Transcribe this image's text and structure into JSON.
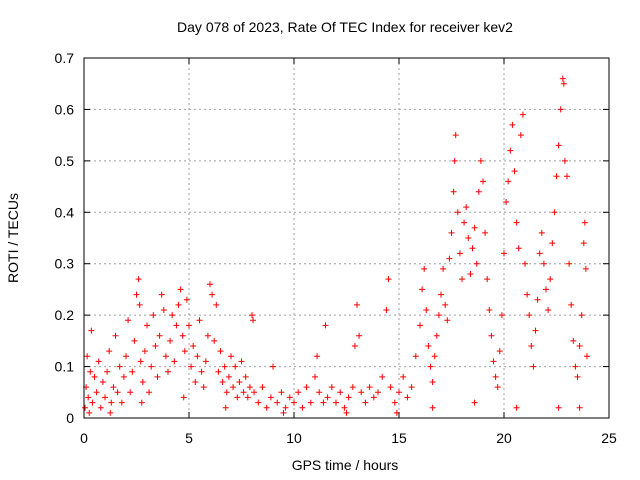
{
  "chart_data": {
    "type": "scatter",
    "title": "Day 078 of 2023, Rate Of TEC Index for receiver kev2",
    "xlabel": "GPS time / hours",
    "ylabel": "ROTI / TECUs",
    "xlim": [
      0,
      25
    ],
    "ylim": [
      0,
      0.7
    ],
    "x_ticks": [
      0,
      5,
      10,
      15,
      20,
      25
    ],
    "y_ticks": [
      0,
      0.1,
      0.2,
      0.3,
      0.4,
      0.5,
      0.6,
      0.7
    ],
    "x_tick_labels": [
      "0",
      "5",
      "10",
      "15",
      "20",
      "25"
    ],
    "y_tick_labels": [
      "0",
      "0.1",
      "0.2",
      "0.3",
      "0.4",
      "0.5",
      "0.6",
      "0.7"
    ],
    "grid": true,
    "marker": "plus",
    "marker_color": "#ff0000",
    "series": [
      {
        "points": [
          [
            0.05,
            0.02
          ],
          [
            0.1,
            0.06
          ],
          [
            0.15,
            0.12
          ],
          [
            0.2,
            0.04
          ],
          [
            0.3,
            0.09
          ],
          [
            0.35,
            0.17
          ],
          [
            0.4,
            0.03
          ],
          [
            0.5,
            0.08
          ],
          [
            0.6,
            0.05
          ],
          [
            0.7,
            0.11
          ],
          [
            0.8,
            0.02
          ],
          [
            0.9,
            0.07
          ],
          [
            1.0,
            0.04
          ],
          [
            1.1,
            0.09
          ],
          [
            1.2,
            0.13
          ],
          [
            1.3,
            0.03
          ],
          [
            1.4,
            0.06
          ],
          [
            1.5,
            0.16
          ],
          [
            1.6,
            0.05
          ],
          [
            1.7,
            0.1
          ],
          [
            1.8,
            0.03
          ],
          [
            1.9,
            0.08
          ],
          [
            2.0,
            0.12
          ],
          [
            2.1,
            0.19
          ],
          [
            2.2,
            0.05
          ],
          [
            2.3,
            0.09
          ],
          [
            2.4,
            0.15
          ],
          [
            2.5,
            0.24
          ],
          [
            2.6,
            0.27
          ],
          [
            2.65,
            0.22
          ],
          [
            2.7,
            0.11
          ],
          [
            2.8,
            0.07
          ],
          [
            2.9,
            0.13
          ],
          [
            3.0,
            0.18
          ],
          [
            3.1,
            0.05
          ],
          [
            3.2,
            0.1
          ],
          [
            3.3,
            0.2
          ],
          [
            3.4,
            0.14
          ],
          [
            3.5,
            0.08
          ],
          [
            3.6,
            0.16
          ],
          [
            3.7,
            0.24
          ],
          [
            3.8,
            0.21
          ],
          [
            3.9,
            0.12
          ],
          [
            4.0,
            0.09
          ],
          [
            4.1,
            0.15
          ],
          [
            4.2,
            0.2
          ],
          [
            4.3,
            0.11
          ],
          [
            4.4,
            0.18
          ],
          [
            4.5,
            0.22
          ],
          [
            4.6,
            0.25
          ],
          [
            4.7,
            0.16
          ],
          [
            4.8,
            0.13
          ],
          [
            4.9,
            0.23
          ],
          [
            5.0,
            0.18
          ],
          [
            5.1,
            0.1
          ],
          [
            5.2,
            0.14
          ],
          [
            5.3,
            0.07
          ],
          [
            5.4,
            0.12
          ],
          [
            5.5,
            0.19
          ],
          [
            5.6,
            0.09
          ],
          [
            5.7,
            0.06
          ],
          [
            5.8,
            0.11
          ],
          [
            5.9,
            0.16
          ],
          [
            6.0,
            0.26
          ],
          [
            6.1,
            0.24
          ],
          [
            6.2,
            0.15
          ],
          [
            6.3,
            0.22
          ],
          [
            6.4,
            0.09
          ],
          [
            6.5,
            0.13
          ],
          [
            6.6,
            0.07
          ],
          [
            6.7,
            0.1
          ],
          [
            6.8,
            0.05
          ],
          [
            6.9,
            0.08
          ],
          [
            7.0,
            0.12
          ],
          [
            7.1,
            0.06
          ],
          [
            7.2,
            0.1
          ],
          [
            7.3,
            0.04
          ],
          [
            7.4,
            0.07
          ],
          [
            7.5,
            0.11
          ],
          [
            7.6,
            0.05
          ],
          [
            7.7,
            0.08
          ],
          [
            7.8,
            0.04
          ],
          [
            7.9,
            0.06
          ],
          [
            8.0,
            0.2
          ],
          [
            8.05,
            0.19
          ],
          [
            8.1,
            0.05
          ],
          [
            8.3,
            0.03
          ],
          [
            8.5,
            0.06
          ],
          [
            8.7,
            0.02
          ],
          [
            8.9,
            0.04
          ],
          [
            9.0,
            0.1
          ],
          [
            9.2,
            0.03
          ],
          [
            9.4,
            0.05
          ],
          [
            9.6,
            0.02
          ],
          [
            9.8,
            0.04
          ],
          [
            10.0,
            0.03
          ],
          [
            10.2,
            0.05
          ],
          [
            10.4,
            0.02
          ],
          [
            10.6,
            0.06
          ],
          [
            10.8,
            0.03
          ],
          [
            11.0,
            0.08
          ],
          [
            11.1,
            0.12
          ],
          [
            11.2,
            0.05
          ],
          [
            11.4,
            0.03
          ],
          [
            11.5,
            0.18
          ],
          [
            11.6,
            0.04
          ],
          [
            11.8,
            0.06
          ],
          [
            12.0,
            0.03
          ],
          [
            12.2,
            0.05
          ],
          [
            12.4,
            0.02
          ],
          [
            12.6,
            0.04
          ],
          [
            12.8,
            0.06
          ],
          [
            12.9,
            0.14
          ],
          [
            13.0,
            0.22
          ],
          [
            13.1,
            0.16
          ],
          [
            13.2,
            0.05
          ],
          [
            13.4,
            0.03
          ],
          [
            13.6,
            0.06
          ],
          [
            13.8,
            0.04
          ],
          [
            14.0,
            0.05
          ],
          [
            14.2,
            0.08
          ],
          [
            14.4,
            0.21
          ],
          [
            14.5,
            0.27
          ],
          [
            14.6,
            0.06
          ],
          [
            14.8,
            0.03
          ],
          [
            15.0,
            0.05
          ],
          [
            15.2,
            0.08
          ],
          [
            15.4,
            0.04
          ],
          [
            15.6,
            0.06
          ],
          [
            15.8,
            0.12
          ],
          [
            16.0,
            0.18
          ],
          [
            16.1,
            0.25
          ],
          [
            16.2,
            0.29
          ],
          [
            16.3,
            0.21
          ],
          [
            16.4,
            0.14
          ],
          [
            16.5,
            0.1
          ],
          [
            16.6,
            0.07
          ],
          [
            16.7,
            0.12
          ],
          [
            16.8,
            0.16
          ],
          [
            16.9,
            0.2
          ],
          [
            17.0,
            0.24
          ],
          [
            17.1,
            0.29
          ],
          [
            17.2,
            0.22
          ],
          [
            17.3,
            0.19
          ],
          [
            17.4,
            0.31
          ],
          [
            17.5,
            0.36
          ],
          [
            17.6,
            0.44
          ],
          [
            17.65,
            0.5
          ],
          [
            17.7,
            0.55
          ],
          [
            17.8,
            0.4
          ],
          [
            17.9,
            0.32
          ],
          [
            18.0,
            0.27
          ],
          [
            18.1,
            0.38
          ],
          [
            18.2,
            0.41
          ],
          [
            18.3,
            0.35
          ],
          [
            18.4,
            0.28
          ],
          [
            18.5,
            0.33
          ],
          [
            18.6,
            0.37
          ],
          [
            18.7,
            0.3
          ],
          [
            18.8,
            0.44
          ],
          [
            18.9,
            0.5
          ],
          [
            19.0,
            0.46
          ],
          [
            19.1,
            0.36
          ],
          [
            19.2,
            0.27
          ],
          [
            19.3,
            0.21
          ],
          [
            19.4,
            0.16
          ],
          [
            19.5,
            0.11
          ],
          [
            19.6,
            0.08
          ],
          [
            19.7,
            0.06
          ],
          [
            19.8,
            0.13
          ],
          [
            19.9,
            0.2
          ],
          [
            20.0,
            0.32
          ],
          [
            20.1,
            0.42
          ],
          [
            20.2,
            0.46
          ],
          [
            20.3,
            0.52
          ],
          [
            20.4,
            0.57
          ],
          [
            20.5,
            0.48
          ],
          [
            20.6,
            0.38
          ],
          [
            20.7,
            0.33
          ],
          [
            20.8,
            0.55
          ],
          [
            20.9,
            0.59
          ],
          [
            21.0,
            0.3
          ],
          [
            21.1,
            0.24
          ],
          [
            21.2,
            0.2
          ],
          [
            21.3,
            0.14
          ],
          [
            21.4,
            0.1
          ],
          [
            21.5,
            0.17
          ],
          [
            21.6,
            0.23
          ],
          [
            21.7,
            0.32
          ],
          [
            21.8,
            0.36
          ],
          [
            21.9,
            0.3
          ],
          [
            22.0,
            0.25
          ],
          [
            22.1,
            0.21
          ],
          [
            22.2,
            0.27
          ],
          [
            22.3,
            0.34
          ],
          [
            22.4,
            0.4
          ],
          [
            22.5,
            0.47
          ],
          [
            22.6,
            0.53
          ],
          [
            22.7,
            0.6
          ],
          [
            22.8,
            0.66
          ],
          [
            22.85,
            0.65
          ],
          [
            22.9,
            0.5
          ],
          [
            23.0,
            0.47
          ],
          [
            23.1,
            0.3
          ],
          [
            23.2,
            0.22
          ],
          [
            23.3,
            0.15
          ],
          [
            23.4,
            0.1
          ],
          [
            23.5,
            0.08
          ],
          [
            23.6,
            0.14
          ],
          [
            23.7,
            0.2
          ],
          [
            23.8,
            0.34
          ],
          [
            23.85,
            0.38
          ],
          [
            23.9,
            0.29
          ],
          [
            23.95,
            0.12
          ],
          [
            0.25,
            0.01
          ],
          [
            1.25,
            0.01
          ],
          [
            2.75,
            0.03
          ],
          [
            4.75,
            0.04
          ],
          [
            6.75,
            0.02
          ],
          [
            9.5,
            0.01
          ],
          [
            12.5,
            0.01
          ],
          [
            14.9,
            0.01
          ],
          [
            16.6,
            0.02
          ],
          [
            18.6,
            0.03
          ],
          [
            20.6,
            0.02
          ],
          [
            22.6,
            0.02
          ],
          [
            23.6,
            0.02
          ]
        ]
      }
    ]
  }
}
